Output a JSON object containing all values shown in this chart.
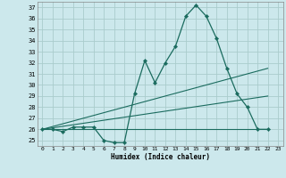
{
  "xlabel": "Humidex (Indice chaleur)",
  "bg_color": "#cce8ec",
  "grid_color": "#aacccc",
  "line_color": "#1a6b5e",
  "xlim": [
    -0.5,
    23.5
  ],
  "ylim": [
    24.5,
    37.5
  ],
  "xticks": [
    0,
    1,
    2,
    3,
    4,
    5,
    6,
    7,
    8,
    9,
    10,
    11,
    12,
    13,
    14,
    15,
    16,
    17,
    18,
    19,
    20,
    21,
    22,
    23
  ],
  "yticks": [
    25,
    26,
    27,
    28,
    29,
    30,
    31,
    32,
    33,
    34,
    35,
    36,
    37
  ],
  "main_x": [
    0,
    1,
    2,
    3,
    4,
    5,
    6,
    7,
    8,
    9,
    10,
    11,
    12,
    13,
    14,
    15,
    16,
    17,
    18,
    19,
    20,
    21,
    22
  ],
  "main_data": [
    26.0,
    26.0,
    25.8,
    26.2,
    26.2,
    26.2,
    25.0,
    24.8,
    24.8,
    29.2,
    32.2,
    30.2,
    32.0,
    33.5,
    36.2,
    37.2,
    36.2,
    34.2,
    31.5,
    29.2,
    28.0,
    26.0,
    26.0
  ],
  "line1_x": [
    0,
    22
  ],
  "line1_data": [
    26.0,
    26.0
  ],
  "line2_x": [
    0,
    22
  ],
  "line2_data": [
    26.0,
    29.0
  ],
  "line3_x": [
    0,
    22
  ],
  "line3_data": [
    26.0,
    31.5
  ]
}
